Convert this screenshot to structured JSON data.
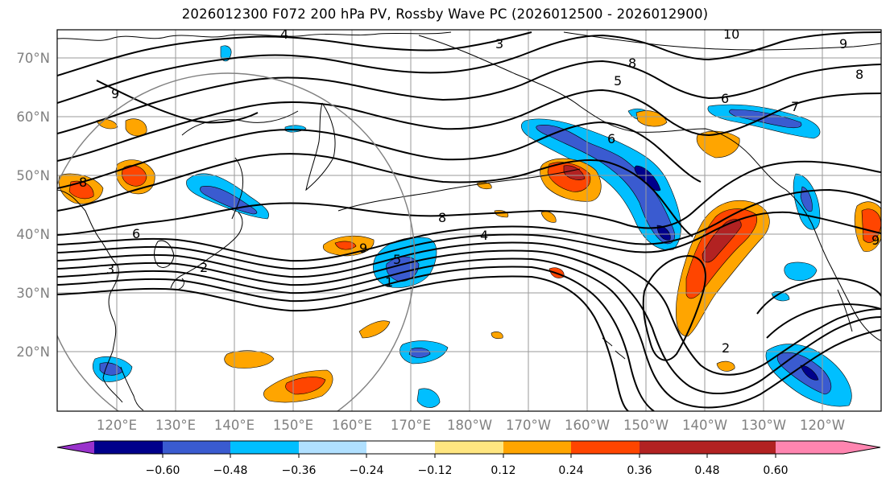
{
  "title": "2026012300 F072 200 hPa PV, Rossby Wave PC (2026012500 - 2026012900)",
  "lat_labels": [
    "70°N",
    "60°N",
    "50°N",
    "40°N",
    "30°N",
    "20°N"
  ],
  "lon_labels": [
    "120°E",
    "130°E",
    "140°E",
    "150°E",
    "160°E",
    "170°E",
    "180°W",
    "170°W",
    "160°W",
    "150°W",
    "140°W",
    "130°W",
    "120°W"
  ],
  "colorbar": {
    "colors": [
      "#9932cc",
      "#00008b",
      "#3a5bd0",
      "#00bfff",
      "#b0e0ff",
      "#ffffff",
      "#ffe680",
      "#ffa500",
      "#ff4500",
      "#b22222",
      "#ff85b0"
    ],
    "tick_labels": [
      "−0.60",
      "−0.48",
      "−0.36",
      "−0.24",
      "−0.12",
      "0.12",
      "0.24",
      "0.36",
      "0.48",
      "0.60"
    ]
  },
  "contour_labels": [
    "4",
    "3",
    "10",
    "8",
    "5",
    "9",
    "6",
    "7",
    "8",
    "9",
    "6",
    "8",
    "4",
    "9",
    "5",
    "1",
    "2",
    "6",
    "3",
    "2",
    "8",
    "9"
  ],
  "colors": {
    "neg_dark": "#00008b",
    "neg_mid": "#3a5bd0",
    "neg_light": "#00bfff",
    "pos_light": "#ffa500",
    "pos_mid": "#ff4500",
    "pos_dark": "#b22222"
  }
}
